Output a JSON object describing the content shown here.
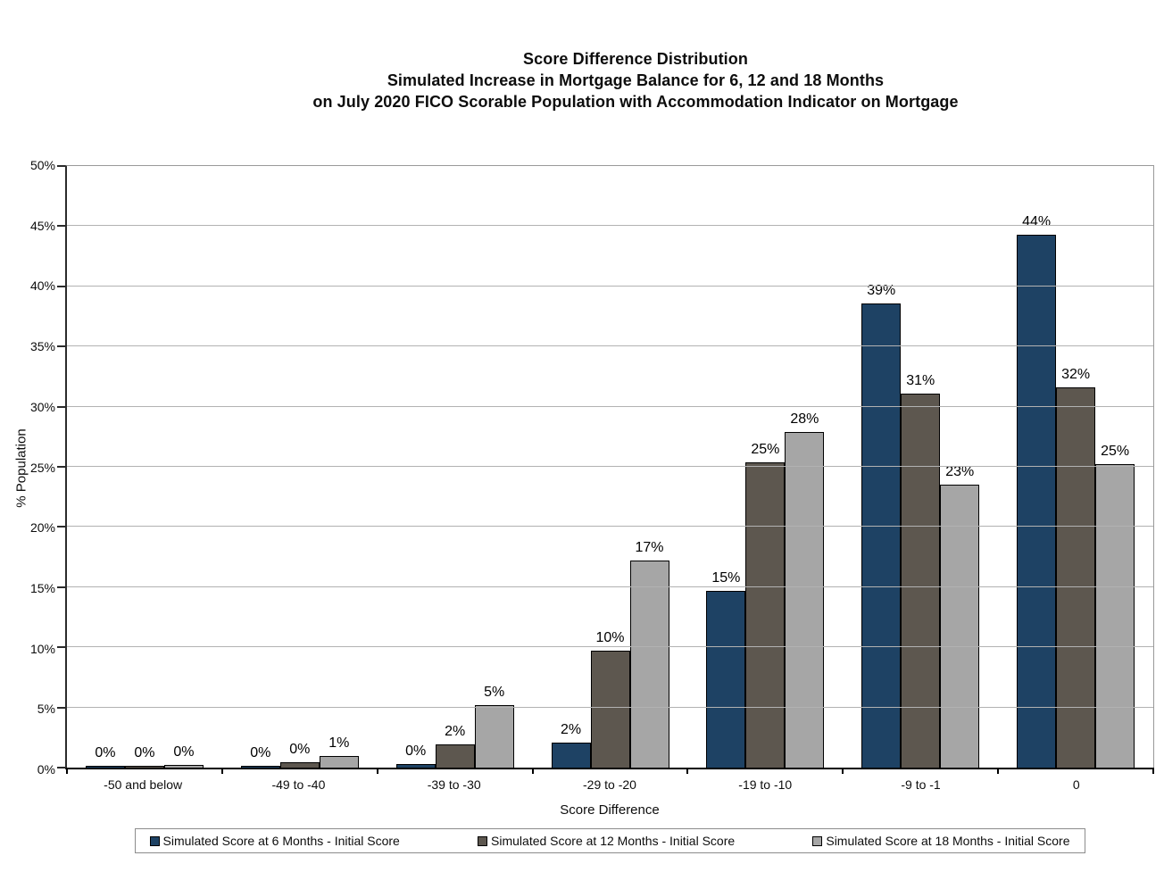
{
  "title": {
    "line1": "Score Difference Distribution",
    "line2": "Simulated Increase in Mortgage Balance for 6, 12 and 18 Months",
    "line3": "on July 2020 FICO Scorable Population with Accommodation Indicator on Mortgage"
  },
  "chart_data": {
    "type": "bar",
    "title": "Score Difference Distribution - Simulated Increase in Mortgage Balance for 6, 12 and 18 Months on July 2020 FICO Scorable Population with Accommodation Indicator on Mortgage",
    "xlabel": "Score Difference",
    "ylabel": "% Population",
    "ylim": [
      0,
      50
    ],
    "grid": true,
    "legend_position": "bottom",
    "categories": [
      "-50 and below",
      "-49 to -40",
      "-39 to -30",
      "-29 to -20",
      "-19 to -10",
      "-9 to -1",
      "0"
    ],
    "yticks": [
      {
        "value": 0,
        "label": "0%"
      },
      {
        "value": 5,
        "label": "5%"
      },
      {
        "value": 10,
        "label": "10%"
      },
      {
        "value": 15,
        "label": "15%"
      },
      {
        "value": 20,
        "label": "20%"
      },
      {
        "value": 25,
        "label": "25%"
      },
      {
        "value": 30,
        "label": "30%"
      },
      {
        "value": 35,
        "label": "35%"
      },
      {
        "value": 40,
        "label": "40%"
      },
      {
        "value": 45,
        "label": "45%"
      },
      {
        "value": 50,
        "label": "50%"
      }
    ],
    "series": [
      {
        "name": "Simulated Score at 6 Months - Initial Score",
        "color": "#1e4264",
        "values": [
          0.15,
          0.15,
          0.3,
          2.1,
          14.7,
          38.6,
          44.3
        ],
        "data_labels": [
          "0%",
          "0%",
          "0%",
          "2%",
          "15%",
          "39%",
          "44%"
        ]
      },
      {
        "name": "Simulated Score at 12 Months - Initial Score",
        "color": "#5d574f",
        "values": [
          0.15,
          0.45,
          1.9,
          9.7,
          25.4,
          31.1,
          31.6
        ],
        "data_labels": [
          "0%",
          "0%",
          "2%",
          "10%",
          "25%",
          "31%",
          "32%"
        ]
      },
      {
        "name": "Simulated Score at 18 Months - Initial Score",
        "color": "#a6a6a6",
        "values": [
          0.2,
          1.0,
          5.2,
          17.2,
          27.9,
          23.5,
          25.2
        ],
        "data_labels": [
          "0%",
          "1%",
          "5%",
          "17%",
          "28%",
          "23%",
          "25%"
        ]
      }
    ]
  }
}
